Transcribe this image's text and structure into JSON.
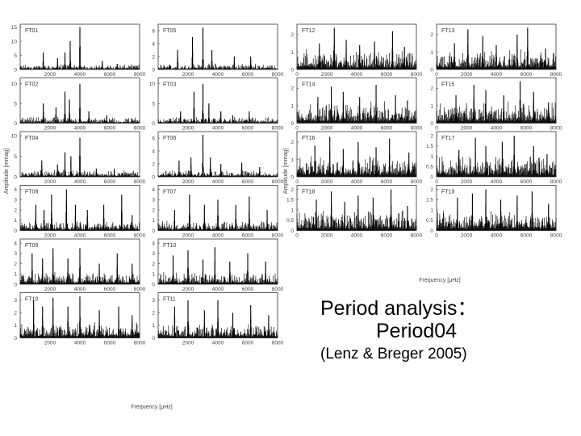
{
  "caption": {
    "line1": "Period analysis：",
    "line2": "Period04",
    "line3": "(Lenz & Breger 2005)"
  },
  "axes": {
    "left_xlabel": "Frequency [μHz]",
    "right_xlabel": "Frequency [μHz]",
    "left_ylabel": "Amplitude [mmag]",
    "right_ylabel": "Amplitude [mmag]"
  },
  "chart_data": [
    {
      "type": "line",
      "id": "FT01",
      "label": "FT01",
      "x_ticks": [
        "2000",
        "4000",
        "6000",
        "8000"
      ],
      "y_ticks": [
        "0",
        "5",
        "10",
        "15"
      ],
      "xlim": [
        0,
        8000
      ],
      "ylim": [
        0,
        16
      ],
      "peaks": [
        [
          1550,
          6
        ],
        [
          2500,
          4
        ],
        [
          3000,
          6
        ],
        [
          3350,
          10
        ],
        [
          4000,
          15
        ],
        [
          5500,
          3
        ],
        [
          6500,
          2
        ]
      ],
      "noise": 0.8
    },
    {
      "type": "line",
      "id": "FT05",
      "label": "FT05",
      "x_ticks": [
        "2000",
        "4000",
        "6000",
        "8000"
      ],
      "y_ticks": [
        "0",
        "2",
        "4",
        "6"
      ],
      "xlim": [
        0,
        8000
      ],
      "ylim": [
        0,
        7
      ],
      "peaks": [
        [
          1300,
          3
        ],
        [
          2300,
          5
        ],
        [
          3000,
          6.5
        ],
        [
          3600,
          3
        ],
        [
          5100,
          2
        ],
        [
          6200,
          2
        ]
      ],
      "noise": 0.4
    },
    {
      "type": "line",
      "id": "FT12",
      "label": "FT12",
      "x_ticks": [
        "0",
        "2000",
        "4000",
        "6000",
        "8000"
      ],
      "y_ticks": [
        "0",
        "1",
        "2"
      ],
      "xlim": [
        0,
        8000
      ],
      "ylim": [
        0,
        2.6
      ],
      "peaks": [
        [
          1500,
          1.5
        ],
        [
          2500,
          2.4
        ],
        [
          3300,
          1.7
        ],
        [
          4200,
          1.4
        ],
        [
          5200,
          1.6
        ],
        [
          6400,
          2.2
        ],
        [
          7200,
          1.3
        ]
      ],
      "noise": 0.5
    },
    {
      "type": "line",
      "id": "FT13",
      "label": "FT13",
      "x_ticks": [
        "0",
        "2000",
        "4000",
        "6000",
        "8000"
      ],
      "y_ticks": [
        "0",
        "1",
        "2"
      ],
      "xlim": [
        0,
        8000
      ],
      "ylim": [
        0,
        2.6
      ],
      "peaks": [
        [
          1200,
          1.5
        ],
        [
          2100,
          2.3
        ],
        [
          3100,
          1.9
        ],
        [
          4000,
          1.4
        ],
        [
          5400,
          2.0
        ],
        [
          6100,
          2.4
        ],
        [
          7300,
          1.2
        ]
      ],
      "noise": 0.5
    },
    {
      "type": "line",
      "id": "FT02",
      "label": "FT02",
      "x_ticks": [
        "2000",
        "4000",
        "6000",
        "8000"
      ],
      "y_ticks": [
        "0",
        "5",
        "10"
      ],
      "xlim": [
        0,
        8000
      ],
      "ylim": [
        0,
        11.5
      ],
      "peaks": [
        [
          1550,
          5
        ],
        [
          2400,
          4
        ],
        [
          3000,
          8
        ],
        [
          3300,
          6
        ],
        [
          4000,
          10
        ],
        [
          4600,
          3
        ],
        [
          5800,
          2
        ]
      ],
      "noise": 0.7
    },
    {
      "type": "line",
      "id": "FT03",
      "label": "FT03",
      "x_ticks": [
        "2000",
        "4000",
        "6000",
        "8000"
      ],
      "y_ticks": [
        "0",
        "5",
        "10"
      ],
      "xlim": [
        0,
        8000
      ],
      "ylim": [
        0,
        11.5
      ],
      "peaks": [
        [
          1500,
          3
        ],
        [
          2400,
          8
        ],
        [
          3000,
          10
        ],
        [
          3400,
          5
        ],
        [
          4200,
          3
        ],
        [
          5000,
          2
        ],
        [
          6100,
          3
        ]
      ],
      "noise": 0.7
    },
    {
      "type": "line",
      "id": "FT14",
      "label": "FT14",
      "x_ticks": [
        "0",
        "2000",
        "4000",
        "6000",
        "8000"
      ],
      "y_ticks": [
        "0",
        "1",
        "2"
      ],
      "xlim": [
        0,
        8000
      ],
      "ylim": [
        0,
        2.6
      ],
      "peaks": [
        [
          1400,
          1.5
        ],
        [
          2300,
          2.1
        ],
        [
          3100,
          1.8
        ],
        [
          4200,
          1.5
        ],
        [
          5300,
          2.2
        ],
        [
          6600,
          1.6
        ],
        [
          7400,
          1.3
        ]
      ],
      "noise": 0.55
    },
    {
      "type": "line",
      "id": "FT15",
      "label": "FT15",
      "x_ticks": [
        "0",
        "2000",
        "4000",
        "6000",
        "8000"
      ],
      "y_ticks": [
        "0",
        "1",
        "2"
      ],
      "xlim": [
        0,
        8000
      ],
      "ylim": [
        0,
        2.6
      ],
      "peaks": [
        [
          1300,
          1.6
        ],
        [
          2500,
          2.2
        ],
        [
          3300,
          1.9
        ],
        [
          4500,
          1.6
        ],
        [
          5600,
          2.4
        ],
        [
          6500,
          1.8
        ],
        [
          7500,
          1.2
        ]
      ],
      "noise": 0.55
    },
    {
      "type": "line",
      "id": "FT04",
      "label": "FT04",
      "x_ticks": [
        "2000",
        "4000",
        "6000",
        "8000"
      ],
      "y_ticks": [
        "0",
        "5",
        "10"
      ],
      "xlim": [
        0,
        8000
      ],
      "ylim": [
        0,
        11
      ],
      "peaks": [
        [
          1450,
          4
        ],
        [
          2500,
          3
        ],
        [
          3000,
          6
        ],
        [
          3400,
          5
        ],
        [
          4000,
          9.5
        ],
        [
          5100,
          2
        ],
        [
          6300,
          2
        ]
      ],
      "noise": 0.8
    },
    {
      "type": "line",
      "id": "FT06",
      "label": "FT06",
      "x_ticks": [
        "2000",
        "4000",
        "6000",
        "8000"
      ],
      "y_ticks": [
        "0",
        "2",
        "4",
        "6"
      ],
      "xlim": [
        0,
        8000
      ],
      "ylim": [
        0,
        7
      ],
      "peaks": [
        [
          1400,
          2.5
        ],
        [
          2200,
          3
        ],
        [
          3000,
          6.5
        ],
        [
          3500,
          3
        ],
        [
          4200,
          2
        ],
        [
          5600,
          2.2
        ],
        [
          6800,
          1.5
        ]
      ],
      "noise": 0.45
    },
    {
      "type": "line",
      "id": "FT16",
      "label": "FT16",
      "x_ticks": [
        "0",
        "2000",
        "4000",
        "6000",
        "8000"
      ],
      "y_ticks": [
        "0",
        "1",
        "2"
      ],
      "xlim": [
        0,
        8000
      ],
      "ylim": [
        0,
        2.6
      ],
      "peaks": [
        [
          1200,
          1.8
        ],
        [
          2200,
          2.3
        ],
        [
          3100,
          1.6
        ],
        [
          4100,
          2.0
        ],
        [
          5300,
          1.7
        ],
        [
          6200,
          2.2
        ],
        [
          7500,
          1.4
        ]
      ],
      "noise": 0.55
    },
    {
      "type": "line",
      "id": "FT17",
      "label": "FT17",
      "x_ticks": [
        "0",
        "2000",
        "4000",
        "6000",
        "8000"
      ],
      "y_ticks": [
        "0",
        "0.5",
        "1",
        "1.5",
        "2"
      ],
      "xlim": [
        0,
        8000
      ],
      "ylim": [
        0,
        2.2
      ],
      "peaks": [
        [
          1500,
          1.3
        ],
        [
          2600,
          1.9
        ],
        [
          3300,
          1.5
        ],
        [
          4400,
          1.7
        ],
        [
          5200,
          2.0
        ],
        [
          6500,
          1.5
        ],
        [
          7400,
          1.1
        ]
      ],
      "noise": 0.45
    },
    {
      "type": "line",
      "id": "FT08",
      "label": "FT08",
      "x_ticks": [
        "2000",
        "4000",
        "6000",
        "8000"
      ],
      "y_ticks": [
        "0",
        "1",
        "2",
        "3",
        "4"
      ],
      "xlim": [
        0,
        8000
      ],
      "ylim": [
        0,
        4.4
      ],
      "peaks": [
        [
          1050,
          2.5
        ],
        [
          1600,
          2
        ],
        [
          2100,
          3.5
        ],
        [
          3100,
          4
        ],
        [
          3700,
          2.5
        ],
        [
          4500,
          2
        ],
        [
          5600,
          2.5
        ],
        [
          6800,
          3.5
        ],
        [
          7500,
          1.5
        ]
      ],
      "noise": 0.4
    },
    {
      "type": "line",
      "id": "FT07",
      "label": "FT07",
      "x_ticks": [
        "2000",
        "4000",
        "6000",
        "8000"
      ],
      "y_ticks": [
        "0",
        "1",
        "2",
        "3",
        "4"
      ],
      "xlim": [
        0,
        8000
      ],
      "ylim": [
        0,
        4.4
      ],
      "peaks": [
        [
          1100,
          2
        ],
        [
          2100,
          3.5
        ],
        [
          3100,
          2.5
        ],
        [
          4000,
          3
        ],
        [
          5200,
          2.5
        ],
        [
          6100,
          3.3
        ],
        [
          7300,
          2
        ]
      ],
      "noise": 0.4
    },
    {
      "type": "line",
      "id": "FT18",
      "label": "FT18",
      "x_ticks": [
        "0",
        "2000",
        "4000",
        "6000",
        "8000"
      ],
      "y_ticks": [
        "0",
        "0.5",
        "1",
        "1.5",
        "2"
      ],
      "xlim": [
        0,
        8000
      ],
      "ylim": [
        0,
        2.2
      ],
      "peaks": [
        [
          1300,
          1.5
        ],
        [
          2300,
          1.9
        ],
        [
          3200,
          1.4
        ],
        [
          4100,
          1.7
        ],
        [
          5100,
          1.6
        ],
        [
          6300,
          2.0
        ],
        [
          7400,
          1.2
        ]
      ],
      "noise": 0.45
    },
    {
      "type": "line",
      "id": "FT19",
      "label": "FT19",
      "x_ticks": [
        "0",
        "2000",
        "4000",
        "6000",
        "8000"
      ],
      "y_ticks": [
        "0",
        "0.5",
        "1",
        "1.5",
        "2"
      ],
      "xlim": [
        0,
        8000
      ],
      "ylim": [
        0,
        2.2
      ],
      "peaks": [
        [
          1400,
          1.6
        ],
        [
          2400,
          1.8
        ],
        [
          3300,
          2.0
        ],
        [
          4300,
          1.5
        ],
        [
          5400,
          1.7
        ],
        [
          6400,
          1.9
        ],
        [
          7500,
          1.3
        ]
      ],
      "noise": 0.45
    },
    {
      "type": "line",
      "id": "FT09",
      "label": "FT09",
      "x_ticks": [
        "2000",
        "4000",
        "6000",
        "8000"
      ],
      "y_ticks": [
        "0",
        "1",
        "2",
        "3",
        "4"
      ],
      "xlim": [
        0,
        8000
      ],
      "ylim": [
        0,
        4.4
      ],
      "peaks": [
        [
          800,
          3
        ],
        [
          1500,
          2.5
        ],
        [
          2200,
          3.5
        ],
        [
          3200,
          2.5
        ],
        [
          4000,
          3.5
        ],
        [
          5300,
          2
        ],
        [
          6500,
          3
        ],
        [
          7500,
          2
        ]
      ],
      "noise": 0.55
    },
    {
      "type": "line",
      "id": "FT10",
      "label": "FT10",
      "x_ticks": [
        "2000",
        "4000",
        "6000",
        "8000"
      ],
      "y_ticks": [
        "0",
        "1",
        "2",
        "3",
        "4"
      ],
      "xlim": [
        0,
        8000
      ],
      "ylim": [
        0,
        4.4
      ],
      "peaks": [
        [
          1000,
          2.8
        ],
        [
          2000,
          3.3
        ],
        [
          3000,
          2.4
        ],
        [
          3800,
          3.6
        ],
        [
          4800,
          2.2
        ],
        [
          6000,
          3.0
        ],
        [
          7200,
          2.2
        ]
      ],
      "noise": 0.5
    },
    {
      "type": "line",
      "id": "FT10b",
      "label": "FT10",
      "x_ticks": [
        "2000",
        "4000",
        "6000",
        "8000"
      ],
      "y_ticks": [
        "0",
        "1",
        "2",
        "3"
      ],
      "xlim": [
        0,
        8000
      ],
      "ylim": [
        0,
        3.6
      ],
      "peaks": [
        [
          900,
          3
        ],
        [
          1500,
          2.5
        ],
        [
          2200,
          3.2
        ],
        [
          3200,
          2.5
        ],
        [
          4000,
          3.3
        ],
        [
          5300,
          2.2
        ],
        [
          6600,
          2.5
        ],
        [
          7500,
          1.8
        ]
      ],
      "noise": 0.55
    },
    {
      "type": "line",
      "id": "FT11",
      "label": "FT11",
      "x_ticks": [
        "2000",
        "4000",
        "6000",
        "8000"
      ],
      "y_ticks": [
        "0",
        "1",
        "2",
        "3"
      ],
      "xlim": [
        0,
        8000
      ],
      "ylim": [
        0,
        3.6
      ],
      "peaks": [
        [
          1100,
          2.5
        ],
        [
          2000,
          3
        ],
        [
          3100,
          2.2
        ],
        [
          4000,
          3
        ],
        [
          5000,
          2
        ],
        [
          6200,
          2.6
        ],
        [
          7400,
          1.8
        ]
      ],
      "noise": 0.5
    }
  ]
}
